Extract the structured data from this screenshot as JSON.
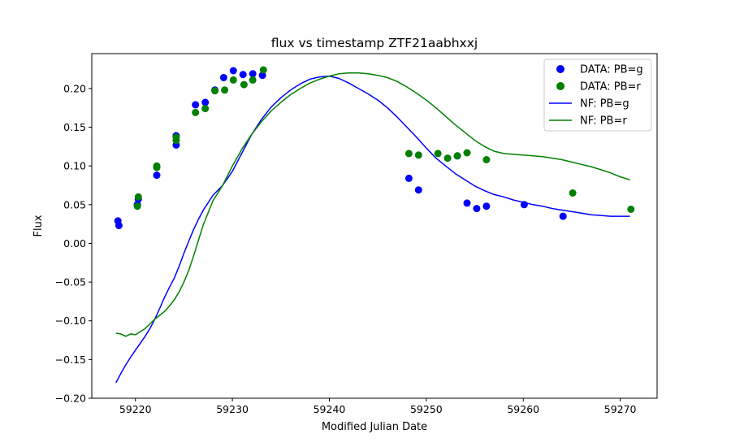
{
  "chart_data": {
    "type": "scatter",
    "title": "flux vs timestamp ZTF21aabhxxj",
    "xlabel": "Modified Julian Date",
    "ylabel": "Flux",
    "xlim": [
      59215.5,
      59273.8
    ],
    "ylim": [
      -0.2,
      0.245
    ],
    "xticks": [
      59220,
      59230,
      59240,
      59250,
      59260,
      59270
    ],
    "yticks": [
      -0.2,
      -0.15,
      -0.1,
      -0.05,
      0.0,
      0.05,
      0.1,
      0.15,
      0.2
    ],
    "xtick_labels": [
      "59220",
      "59230",
      "59240",
      "59250",
      "59260",
      "59270"
    ],
    "ytick_labels": [
      "−0.20",
      "−0.15",
      "−0.10",
      "−0.05",
      "0.00",
      "0.05",
      "0.10",
      "0.15",
      "0.20"
    ],
    "grid": false,
    "legend_position": "top-right",
    "series": [
      {
        "name": "DATA: PB=g",
        "kind": "scatter",
        "color": "#0000ff",
        "x": [
          59218.2,
          59218.3,
          59220.2,
          59220.3,
          59222.2,
          59224.2,
          59224.2,
          59226.2,
          59227.2,
          59228.2,
          59229.1,
          59230.1,
          59231.1,
          59232.1,
          59233.1,
          59248.2,
          59249.2,
          59253.2,
          59254.2,
          59255.2,
          59256.2,
          59260.1,
          59264.1
        ],
        "y": [
          0.029,
          0.023,
          0.05,
          0.057,
          0.088,
          0.139,
          0.127,
          0.179,
          0.182,
          0.198,
          0.214,
          0.223,
          0.218,
          0.219,
          0.217,
          0.084,
          0.069,
          0.113,
          0.052,
          0.045,
          0.048,
          0.05,
          0.035
        ]
      },
      {
        "name": "DATA: PB=r",
        "kind": "scatter",
        "color": "#008000",
        "x": [
          59220.2,
          59220.3,
          59222.2,
          59222.2,
          59224.2,
          59224.2,
          59226.2,
          59227.2,
          59228.2,
          59229.2,
          59230.1,
          59231.2,
          59232.1,
          59233.2,
          59248.2,
          59249.2,
          59251.2,
          59252.2,
          59253.2,
          59254.2,
          59256.2,
          59265.1,
          59271.1
        ],
        "y": [
          0.048,
          0.06,
          0.098,
          0.1,
          0.133,
          0.137,
          0.169,
          0.174,
          0.197,
          0.198,
          0.211,
          0.205,
          0.211,
          0.224,
          0.116,
          0.114,
          0.116,
          0.11,
          0.113,
          0.117,
          0.108,
          0.065,
          0.044
        ]
      },
      {
        "name": "NF: PB=g",
        "kind": "line",
        "color": "#0000ff",
        "x": [
          59218.0,
          59218.5,
          59219.0,
          59219.5,
          59220.0,
          59220.5,
          59221.0,
          59221.5,
          59222.0,
          59222.5,
          59223.0,
          59223.5,
          59224.0,
          59224.5,
          59225.0,
          59225.5,
          59226.0,
          59226.5,
          59227.0,
          59228.0,
          59229.0,
          59230.0,
          59231.0,
          59232.0,
          59233.0,
          59234.0,
          59235.0,
          59236.0,
          59237.0,
          59238.0,
          59239.0,
          59240.0,
          59241.0,
          59242.0,
          59243.0,
          59244.0,
          59245.0,
          59246.0,
          59247.0,
          59248.0,
          59249.0,
          59250.0,
          59251.0,
          59252.0,
          59253.0,
          59254.0,
          59255.0,
          59256.0,
          59257.0,
          59258.0,
          59259.0,
          59260.0,
          59261.0,
          59262.0,
          59263.0,
          59264.0,
          59265.0,
          59266.0,
          59267.0,
          59268.0,
          59269.0,
          59270.0,
          59271.0
        ],
        "y": [
          -0.18,
          -0.168,
          -0.157,
          -0.147,
          -0.138,
          -0.129,
          -0.12,
          -0.11,
          -0.098,
          -0.084,
          -0.07,
          -0.057,
          -0.045,
          -0.03,
          -0.013,
          0.003,
          0.018,
          0.031,
          0.043,
          0.062,
          0.075,
          0.093,
          0.117,
          0.141,
          0.16,
          0.176,
          0.188,
          0.198,
          0.206,
          0.212,
          0.215,
          0.216,
          0.213,
          0.207,
          0.2,
          0.193,
          0.185,
          0.175,
          0.163,
          0.15,
          0.137,
          0.123,
          0.11,
          0.1,
          0.09,
          0.082,
          0.074,
          0.068,
          0.063,
          0.06,
          0.056,
          0.053,
          0.05,
          0.048,
          0.045,
          0.043,
          0.041,
          0.039,
          0.037,
          0.036,
          0.035,
          0.035,
          0.035
        ]
      },
      {
        "name": "NF: PB=r",
        "kind": "line",
        "color": "#008000",
        "x": [
          59218.0,
          59218.5,
          59219.0,
          59219.5,
          59220.0,
          59220.5,
          59221.0,
          59221.5,
          59222.0,
          59222.5,
          59223.0,
          59223.5,
          59224.0,
          59224.5,
          59225.0,
          59225.5,
          59226.0,
          59226.5,
          59227.0,
          59228.0,
          59229.0,
          59230.0,
          59231.0,
          59232.0,
          59233.0,
          59234.0,
          59235.0,
          59236.0,
          59237.0,
          59238.0,
          59239.0,
          59240.0,
          59241.0,
          59242.0,
          59243.0,
          59244.0,
          59245.0,
          59246.0,
          59247.0,
          59248.0,
          59249.0,
          59250.0,
          59251.0,
          59252.0,
          59253.0,
          59254.0,
          59255.0,
          59256.0,
          59257.0,
          59258.0,
          59259.0,
          59260.0,
          59261.0,
          59262.0,
          59263.0,
          59264.0,
          59265.0,
          59266.0,
          59267.0,
          59268.0,
          59269.0,
          59270.0,
          59271.0
        ],
        "y": [
          -0.116,
          -0.117,
          -0.12,
          -0.117,
          -0.118,
          -0.114,
          -0.11,
          -0.104,
          -0.098,
          -0.093,
          -0.088,
          -0.081,
          -0.073,
          -0.063,
          -0.05,
          -0.035,
          -0.016,
          0.004,
          0.024,
          0.055,
          0.075,
          0.1,
          0.122,
          0.141,
          0.157,
          0.171,
          0.182,
          0.192,
          0.2,
          0.207,
          0.212,
          0.216,
          0.219,
          0.22,
          0.22,
          0.219,
          0.217,
          0.214,
          0.209,
          0.202,
          0.194,
          0.185,
          0.175,
          0.164,
          0.153,
          0.143,
          0.133,
          0.125,
          0.119,
          0.116,
          0.115,
          0.114,
          0.113,
          0.112,
          0.11,
          0.108,
          0.105,
          0.102,
          0.099,
          0.095,
          0.091,
          0.086,
          0.082
        ]
      }
    ]
  }
}
